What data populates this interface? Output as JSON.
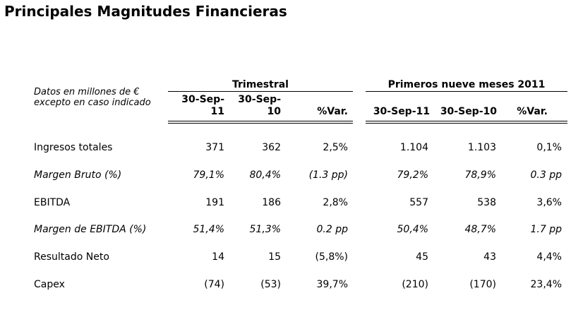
{
  "title": "Principales Magnitudes Financieras",
  "note_line1": "Datos en millones de €",
  "note_line2": "excepto en caso indicado",
  "groups": {
    "trimestral": "Trimestral",
    "nueve_meses": "Primeros nueve meses 2011"
  },
  "columns": {
    "q_2011_line1": "30-Sep-",
    "q_2011_line2": "11",
    "q_2010_line1": "30-Sep-",
    "q_2010_line2": "10",
    "q_var": "%Var.",
    "m_2011": "30-Sep-11",
    "m_2010": "30-Sep-10",
    "m_var": "%Var."
  },
  "rows": [
    {
      "label": "Ingresos totales",
      "italic": false,
      "values": [
        "371",
        "362",
        "2,5%",
        "1.104",
        "1.103",
        "0,1%"
      ]
    },
    {
      "label": "Margen Bruto (%)",
      "italic": true,
      "values": [
        "79,1%",
        "80,4%",
        "(1.3 pp)",
        "79,2%",
        "78,9%",
        "0.3 pp"
      ]
    },
    {
      "label": "EBITDA",
      "italic": false,
      "values": [
        "191",
        "186",
        "2,8%",
        "557",
        "538",
        "3,6%"
      ]
    },
    {
      "label": "Margen de EBITDA (%)",
      "italic": true,
      "values": [
        "51,4%",
        "51,3%",
        "0.2 pp",
        "50,4%",
        "48,7%",
        "1.7 pp"
      ]
    },
    {
      "label": "Resultado Neto",
      "italic": false,
      "values": [
        "14",
        "15",
        "(5,8%)",
        "45",
        "43",
        "4,4%"
      ]
    },
    {
      "label": "Capex",
      "italic": false,
      "values": [
        "(74)",
        "(53)",
        "39,7%",
        "(210)",
        "(170)",
        "23,4%"
      ]
    }
  ]
}
